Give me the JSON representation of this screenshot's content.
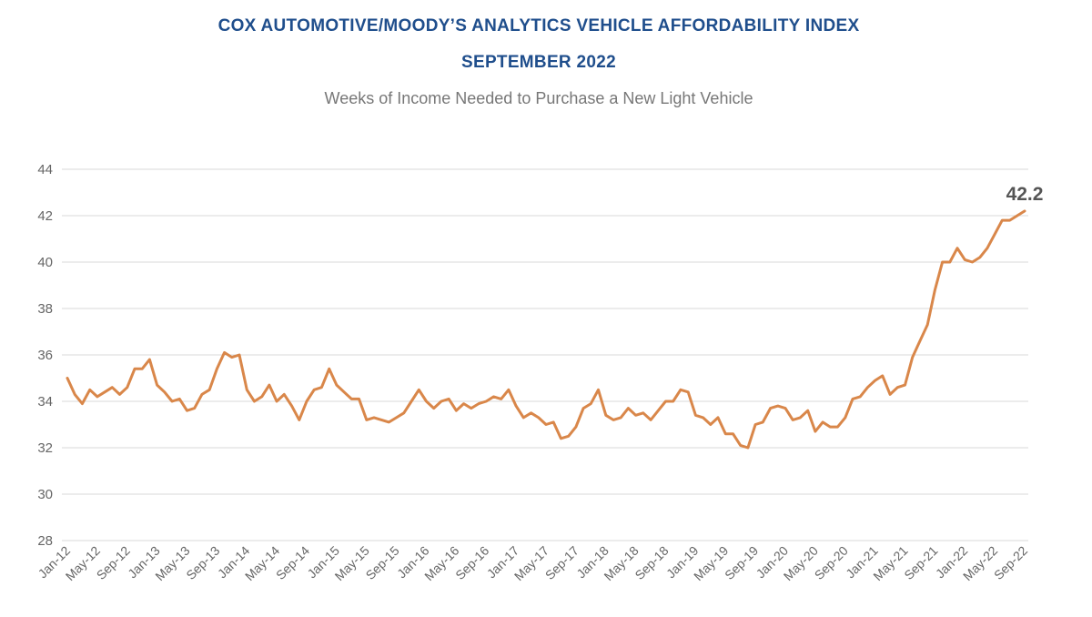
{
  "chart_data": {
    "type": "line",
    "title": "COX AUTOMOTIVE/MOODY’S ANALYTICS VEHICLE AFFORDABILITY INDEX",
    "subtitle_date": "SEPTEMBER 2022",
    "subtitle": "Weeks of Income Needed to Purchase a New Light Vehicle",
    "xlabel": "",
    "ylabel": "",
    "ylim": [
      28,
      44
    ],
    "yticks": [
      "28",
      "30",
      "32",
      "34",
      "36",
      "38",
      "40",
      "42",
      "44"
    ],
    "x_tick_labels": [
      "Jan-12",
      "May-12",
      "Sep-12",
      "Jan-13",
      "May-13",
      "Sep-13",
      "Jan-14",
      "May-14",
      "Sep-14",
      "Jan-15",
      "May-15",
      "Sep-15",
      "Jan-16",
      "May-16",
      "Sep-16",
      "Jan-17",
      "May-17",
      "Sep-17",
      "Jan-18",
      "May-18",
      "Sep-18",
      "Jan-19",
      "May-19",
      "Sep-19",
      "Jan-20",
      "May-20",
      "Sep-20",
      "Jan-21",
      "May-21",
      "Sep-21",
      "Jan-22",
      "May-22",
      "Sep-22"
    ],
    "grid": true,
    "series": [
      {
        "name": "Weeks of Income",
        "color": "#d9874a",
        "values": [
          35.0,
          34.3,
          33.9,
          34.5,
          34.2,
          34.4,
          34.6,
          34.3,
          34.6,
          35.4,
          35.4,
          35.8,
          34.7,
          34.4,
          34.0,
          34.1,
          33.6,
          33.7,
          34.3,
          34.5,
          35.4,
          36.1,
          35.9,
          36.0,
          34.5,
          34.0,
          34.2,
          34.7,
          34.0,
          34.3,
          33.8,
          33.2,
          34.0,
          34.5,
          34.6,
          35.4,
          34.7,
          34.4,
          34.1,
          34.1,
          33.2,
          33.3,
          33.2,
          33.1,
          33.3,
          33.5,
          34.0,
          34.5,
          34.0,
          33.7,
          34.0,
          34.1,
          33.6,
          33.9,
          33.7,
          33.9,
          34.0,
          34.2,
          34.1,
          34.5,
          33.8,
          33.3,
          33.5,
          33.3,
          33.0,
          33.1,
          32.4,
          32.5,
          32.9,
          33.7,
          33.9,
          34.5,
          33.4,
          33.2,
          33.3,
          33.7,
          33.4,
          33.5,
          33.2,
          33.6,
          34.0,
          34.0,
          34.5,
          34.4,
          33.4,
          33.3,
          33.0,
          33.3,
          32.6,
          32.6,
          32.1,
          32.0,
          33.0,
          33.1,
          33.7,
          33.8,
          33.7,
          33.2,
          33.3,
          33.6,
          32.7,
          33.1,
          32.9,
          32.9,
          33.3,
          34.1,
          34.2,
          34.6,
          34.9,
          35.1,
          34.3,
          34.6,
          34.7,
          35.9,
          36.6,
          37.3,
          38.8,
          40.0,
          40.0,
          40.6,
          40.1,
          40.0,
          40.2,
          40.6,
          41.2,
          41.8,
          41.8,
          42.0,
          42.2
        ]
      }
    ],
    "end_label": "42.2"
  }
}
